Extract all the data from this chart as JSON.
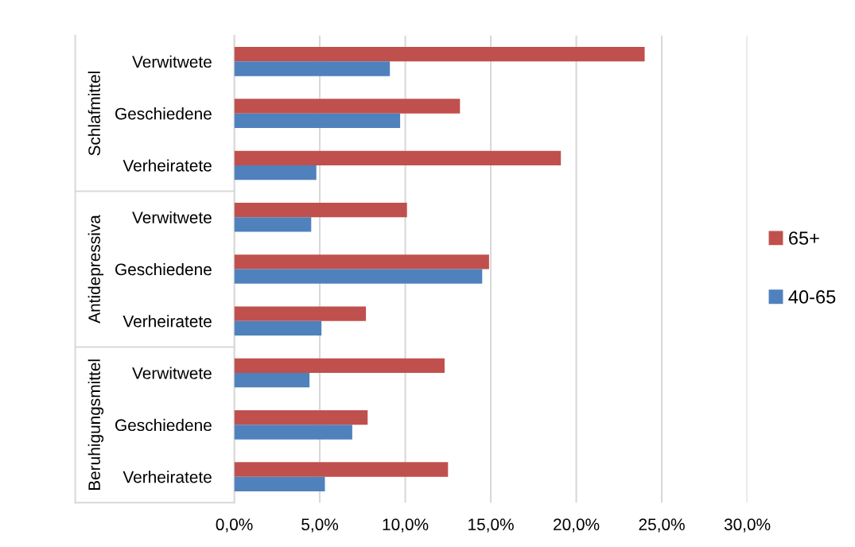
{
  "chart_data": {
    "type": "bar",
    "orientation": "horizontal",
    "categories": [
      "Verwitwete",
      "Geschiedene",
      "Verheiratete",
      "Verwitwete",
      "Geschiedene",
      "Verheiratete",
      "Verwitwete",
      "Geschiedene",
      "Verheiratete"
    ],
    "annotations": [
      "Schlafmittel",
      "Antidepressiva",
      "Beruhigungsmittel"
    ],
    "series": [
      {
        "name": "65+",
        "color": "#c0504d",
        "values": [
          24.0,
          13.2,
          19.1,
          10.1,
          14.9,
          7.7,
          12.3,
          7.8,
          12.5
        ]
      },
      {
        "name": "40-65",
        "color": "#4f81bd",
        "values": [
          9.1,
          9.7,
          4.8,
          4.5,
          14.5,
          5.1,
          4.4,
          6.9,
          5.3
        ]
      }
    ],
    "xlim": [
      0,
      30
    ],
    "xticks": [
      {
        "value": 0,
        "label": "0,0%"
      },
      {
        "value": 5,
        "label": "5,0%"
      },
      {
        "value": 10,
        "label": "10,0%"
      },
      {
        "value": 15,
        "label": "15,0%"
      },
      {
        "value": 20,
        "label": "20,0%"
      },
      {
        "value": 25,
        "label": "25,0%"
      },
      {
        "value": 30,
        "label": "30,0%"
      }
    ],
    "grid": "x",
    "legend": "right"
  }
}
